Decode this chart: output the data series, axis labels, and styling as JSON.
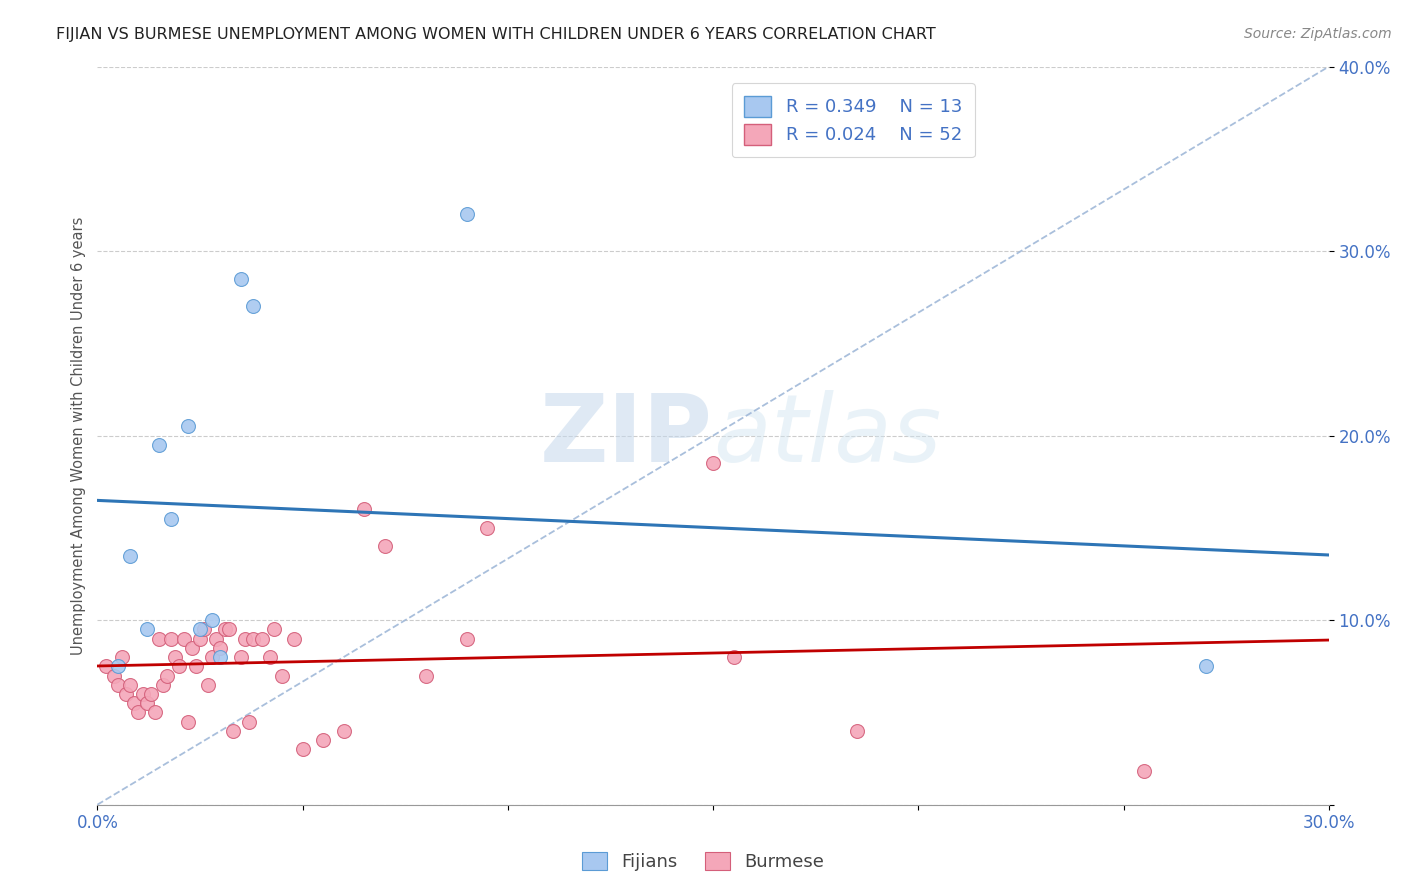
{
  "title": "FIJIAN VS BURMESE UNEMPLOYMENT AMONG WOMEN WITH CHILDREN UNDER 6 YEARS CORRELATION CHART",
  "source": "Source: ZipAtlas.com",
  "ylabel": "Unemployment Among Women with Children Under 6 years",
  "xlim": [
    0.0,
    0.3
  ],
  "ylim": [
    -0.02,
    0.42
  ],
  "plot_ylim": [
    0.0,
    0.4
  ],
  "xticks": [
    0.0,
    0.05,
    0.1,
    0.15,
    0.2,
    0.25,
    0.3
  ],
  "yticks": [
    0.0,
    0.1,
    0.2,
    0.3,
    0.4
  ],
  "watermark_zip": "ZIP",
  "watermark_atlas": "atlas",
  "fijian_color": "#a8c8f0",
  "fijian_edge_color": "#5b9bd5",
  "burmese_color": "#f4a7b9",
  "burmese_edge_color": "#d45f7a",
  "fijian_line_color": "#2E75B6",
  "burmese_line_color": "#C00000",
  "diagonal_color": "#a0b8d8",
  "legend_R_fijian": "0.349",
  "legend_N_fijian": "13",
  "legend_R_burmese": "0.024",
  "legend_N_burmese": "52",
  "fijian_x": [
    0.005,
    0.008,
    0.012,
    0.015,
    0.018,
    0.022,
    0.025,
    0.028,
    0.03,
    0.035,
    0.038,
    0.09,
    0.27
  ],
  "fijian_y": [
    0.075,
    0.135,
    0.095,
    0.195,
    0.155,
    0.205,
    0.095,
    0.1,
    0.08,
    0.285,
    0.27,
    0.32,
    0.075
  ],
  "burmese_x": [
    0.002,
    0.004,
    0.005,
    0.006,
    0.007,
    0.008,
    0.009,
    0.01,
    0.011,
    0.012,
    0.013,
    0.014,
    0.015,
    0.016,
    0.017,
    0.018,
    0.019,
    0.02,
    0.021,
    0.022,
    0.023,
    0.024,
    0.025,
    0.026,
    0.027,
    0.028,
    0.029,
    0.03,
    0.031,
    0.032,
    0.033,
    0.035,
    0.036,
    0.037,
    0.038,
    0.04,
    0.042,
    0.043,
    0.045,
    0.048,
    0.05,
    0.055,
    0.06,
    0.065,
    0.07,
    0.08,
    0.09,
    0.095,
    0.15,
    0.155,
    0.185,
    0.255
  ],
  "burmese_y": [
    0.075,
    0.07,
    0.065,
    0.08,
    0.06,
    0.065,
    0.055,
    0.05,
    0.06,
    0.055,
    0.06,
    0.05,
    0.09,
    0.065,
    0.07,
    0.09,
    0.08,
    0.075,
    0.09,
    0.045,
    0.085,
    0.075,
    0.09,
    0.095,
    0.065,
    0.08,
    0.09,
    0.085,
    0.095,
    0.095,
    0.04,
    0.08,
    0.09,
    0.045,
    0.09,
    0.09,
    0.08,
    0.095,
    0.07,
    0.09,
    0.03,
    0.035,
    0.04,
    0.16,
    0.14,
    0.07,
    0.09,
    0.15,
    0.185,
    0.08,
    0.04,
    0.018
  ],
  "background_color": "#ffffff",
  "grid_color": "#cccccc",
  "title_color": "#222222",
  "axis_color": "#4472C4",
  "marker_size": 100
}
